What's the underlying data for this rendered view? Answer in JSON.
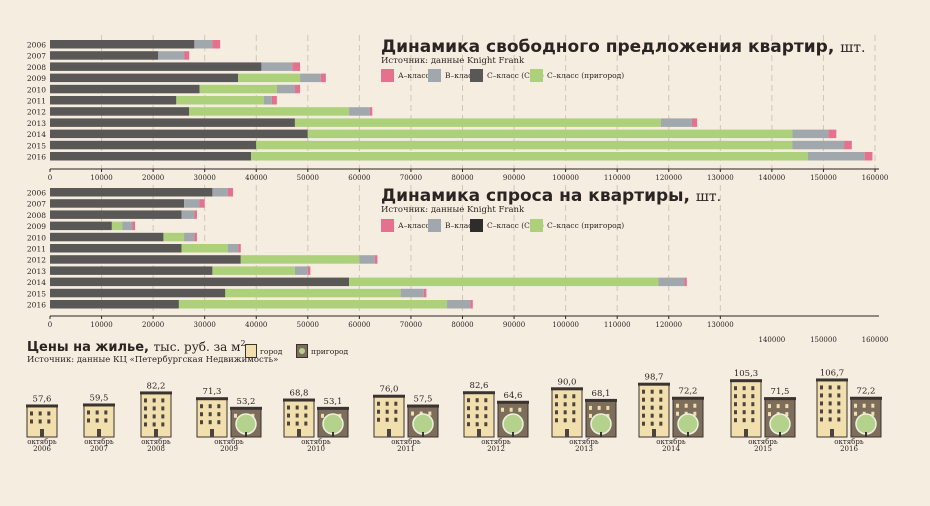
{
  "colors": {
    "a": "#e5718f",
    "b": "#a0a8ad",
    "c": "#5a5856",
    "d": "#acd17a",
    "bg": "#f6ede1",
    "grid": "#d3c4b4"
  },
  "legend": {
    "a": "А–класс",
    "b": "B–класс",
    "c": "С–класс (СПб)",
    "d": "С–класс (пригород)"
  },
  "chart1": {
    "title": "Динамика свободного предложения квартир,",
    "unit": "шт.",
    "source": "Источник: данные Knight Frank"
  },
  "chart2": {
    "title": "Динамика спроса на квартиры,",
    "unit": "шт.",
    "source": "Источник: данные Knight Frank"
  },
  "chart3": {
    "title": "Цены на жилье,",
    "unit": "тыс. руб. за м",
    "unit_sup": "2",
    "source": "Источник: данные КЦ «Петербургская Недвижимость»",
    "legend_city": "город",
    "legend_suburb": "пригород"
  },
  "chart_data": [
    {
      "type": "bar",
      "orientation": "horizontal",
      "stacked": true,
      "title": "Динамика свободного предложения квартир, шт.",
      "categories": [
        "2006",
        "2007",
        "2008",
        "2009",
        "2010",
        "2011",
        "2012",
        "2013",
        "2014",
        "2015",
        "2016"
      ],
      "series": [
        {
          "name": "С–класс (СПб)",
          "values": [
            28000,
            21000,
            41000,
            36500,
            29000,
            24500,
            27000,
            47500,
            50000,
            40000,
            39000
          ]
        },
        {
          "name": "С–класс (пригород)",
          "values": [
            0,
            0,
            0,
            12000,
            15000,
            17000,
            31000,
            71000,
            94000,
            104000,
            108000
          ]
        },
        {
          "name": "B–класс",
          "values": [
            3500,
            5000,
            6000,
            4000,
            3500,
            1500,
            4000,
            6000,
            7000,
            10000,
            11000
          ]
        },
        {
          "name": "А–класс",
          "values": [
            1500,
            1000,
            1500,
            1000,
            1000,
            1000,
            500,
            1000,
            1500,
            1500,
            1500
          ]
        }
      ],
      "xticks": [
        0,
        10000,
        20000,
        30000,
        40000,
        50000,
        60000,
        70000,
        80000,
        90000,
        100000,
        110000,
        120000,
        130000,
        140000,
        150000,
        160000
      ],
      "xlim": [
        0,
        160000
      ]
    },
    {
      "type": "bar",
      "orientation": "horizontal",
      "stacked": true,
      "title": "Динамика спроса на квартиры, шт.",
      "categories": [
        "2006",
        "2007",
        "2008",
        "2009",
        "2010",
        "2011",
        "2012",
        "2013",
        "2014",
        "2015",
        "2016"
      ],
      "series": [
        {
          "name": "С–класс (СПб)",
          "values": [
            31500,
            26000,
            25500,
            12000,
            22000,
            25500,
            37000,
            31500,
            58000,
            34000,
            25000
          ]
        },
        {
          "name": "С–класс (пригород)",
          "values": [
            0,
            0,
            0,
            2000,
            4000,
            9000,
            23000,
            16000,
            60000,
            34000,
            52000
          ]
        },
        {
          "name": "B–класс",
          "values": [
            3000,
            3000,
            2500,
            2000,
            2000,
            2000,
            3000,
            2500,
            5000,
            4500,
            4500
          ]
        },
        {
          "name": "А–класс",
          "values": [
            1000,
            1000,
            500,
            500,
            500,
            500,
            500,
            500,
            500,
            500,
            500
          ]
        }
      ],
      "xticks": [
        0,
        10000,
        20000,
        30000,
        40000,
        50000,
        60000,
        70000,
        80000,
        90000,
        100000,
        110000,
        120000,
        130000
      ],
      "xticks_lower": [
        140000,
        150000,
        160000
      ],
      "xlim": [
        0,
        160000
      ]
    },
    {
      "type": "bar",
      "title": "Цены на жилье, тыс. руб. за м2",
      "categories": [
        {
          "month": "октябрь",
          "year": "2006"
        },
        {
          "month": "октябрь",
          "year": "2007"
        },
        {
          "month": "октябрь",
          "year": "2008"
        },
        {
          "month": "октябрь",
          "year": "2009"
        },
        {
          "month": "октябрь",
          "year": "2010"
        },
        {
          "month": "октябрь",
          "year": "2011"
        },
        {
          "month": "октябрь",
          "year": "2012"
        },
        {
          "month": "октябрь",
          "year": "2013"
        },
        {
          "month": "октябрь",
          "year": "2014"
        },
        {
          "month": "октябрь",
          "year": "2015"
        },
        {
          "month": "октябрь",
          "year": "2016"
        }
      ],
      "series": [
        {
          "name": "город",
          "values": [
            57.6,
            59.5,
            82.2,
            71.3,
            68.8,
            76.0,
            82.6,
            90.0,
            98.7,
            105.3,
            106.7
          ],
          "labels": [
            "57,6",
            "59,5",
            "82,2",
            "71,3",
            "68,8",
            "76,0",
            "82,6",
            "90,0",
            "98,7",
            "105,3",
            "106,7"
          ]
        },
        {
          "name": "пригород",
          "values": [
            null,
            null,
            null,
            53.2,
            53.1,
            57.5,
            64.6,
            68.1,
            72.2,
            71.5,
            72.2
          ],
          "labels": [
            "",
            "",
            "",
            "53,2",
            "53,1",
            "57,5",
            "64,6",
            "68,1",
            "72,2",
            "71,5",
            "72,2"
          ]
        }
      ]
    }
  ]
}
